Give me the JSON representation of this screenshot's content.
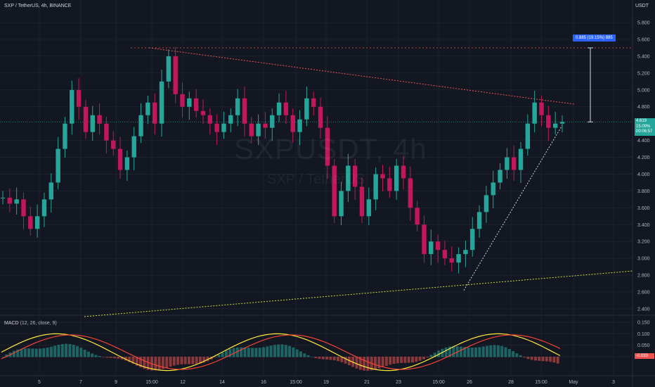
{
  "header": {
    "symbol": "SXP / TetherUS",
    "interval": "4h",
    "exchange": "BINANCE",
    "currency": "USDT"
  },
  "watermark": {
    "main": "SXPUSDT, 4h",
    "sub": "SXP / TetherUS"
  },
  "price_axis": {
    "labels": [
      "5.800",
      "5.600",
      "5.400",
      "5.200",
      "5.000",
      "4.800",
      "4.400",
      "4.200",
      "4.000",
      "3.800",
      "3.600",
      "3.400",
      "3.200",
      "3.000",
      "2.800",
      "2.600",
      "2.400"
    ]
  },
  "macd_axis": {
    "labels": [
      "0.150",
      "0.100",
      "0.050",
      "0.000"
    ]
  },
  "time_axis": {
    "labels": [
      "5",
      "7",
      "9",
      "15:00",
      "12",
      "14",
      "16",
      "15:00",
      "19",
      "21",
      "23",
      "15:00",
      "26",
      "28",
      "15:00",
      "May",
      "3"
    ]
  },
  "current_price": {
    "price": "4.619",
    "change": "15.09%",
    "countdown": "00:06:57"
  },
  "macd_current": "-0.033",
  "measure_label": "0.885 (19.15%) 885",
  "macd": {
    "label": "MACD",
    "params": "(12, 26, close, 9)"
  },
  "colors": {
    "background": "#131722",
    "up": "#26a69a",
    "down": "#c2185b",
    "trend_upper": "#ef5350",
    "trend_lower": "#cddc39",
    "macd_line": "#ffeb3b",
    "signal_line": "#f44336"
  },
  "chart_data": {
    "type": "candlestick",
    "title": "SXPUSDT, 4h",
    "ylim": [
      2.4,
      5.9
    ],
    "candles_approx_close": [
      3.72,
      3.65,
      3.7,
      3.5,
      3.35,
      3.5,
      3.7,
      3.9,
      4.3,
      4.6,
      5.0,
      4.8,
      4.5,
      4.7,
      4.6,
      4.4,
      4.3,
      4.05,
      4.2,
      4.45,
      4.7,
      4.85,
      4.6,
      5.1,
      5.4,
      4.95,
      4.8,
      4.9,
      4.75,
      4.7,
      4.6,
      4.5,
      4.6,
      4.7,
      4.9,
      4.6,
      4.45,
      4.6,
      4.55,
      4.7,
      4.85,
      4.7,
      4.5,
      4.65,
      4.9,
      4.8,
      4.55,
      4.1,
      3.5,
      3.8,
      4.1,
      3.85,
      3.5,
      3.7,
      4.0,
      3.95,
      3.8,
      4.1,
      3.95,
      3.6,
      3.4,
      3.05,
      3.2,
      3.1,
      3.0,
      2.95,
      3.05,
      3.1,
      3.35,
      3.55,
      3.75,
      3.9,
      4.05,
      4.2,
      4.05,
      4.3,
      4.6,
      4.85,
      4.7,
      4.55,
      4.6,
      4.62
    ],
    "annotations": {
      "upper_trendline": [
        [
          5.5,
          "start"
        ],
        [
          4.83,
          "end"
        ]
      ],
      "lower_trendline": [
        [
          2.6,
          "start"
        ],
        [
          2.85,
          "end"
        ]
      ]
    },
    "macd_ylim": [
      -0.04,
      0.16
    ]
  }
}
